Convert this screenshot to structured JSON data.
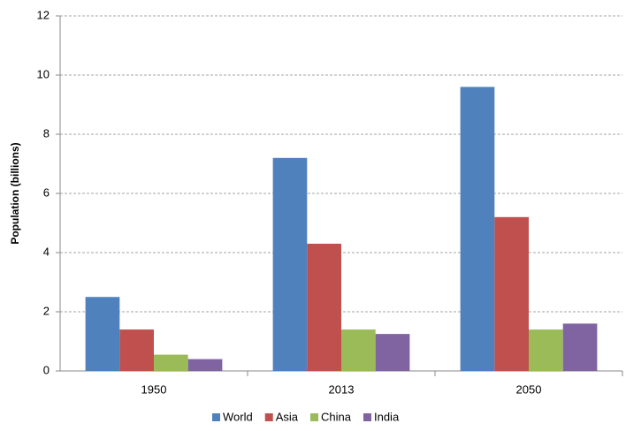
{
  "chart_data": {
    "type": "bar",
    "y_label": "Population (billions)",
    "categories": [
      "1950",
      "2013",
      "2050"
    ],
    "series": [
      {
        "name": "World",
        "color": "#4f81bd",
        "values": [
          2.5,
          7.2,
          9.6
        ]
      },
      {
        "name": "Asia",
        "color": "#c0504d",
        "values": [
          1.4,
          4.3,
          5.2
        ]
      },
      {
        "name": "China",
        "color": "#9bbb59",
        "values": [
          0.55,
          1.4,
          1.4
        ]
      },
      {
        "name": "India",
        "color": "#8064a2",
        "values": [
          0.4,
          1.25,
          1.6
        ]
      }
    ],
    "ylim": [
      0,
      12
    ],
    "yticks": [
      0,
      2,
      4,
      6,
      8,
      10,
      12
    ],
    "grid": true,
    "legend": "bottom"
  }
}
